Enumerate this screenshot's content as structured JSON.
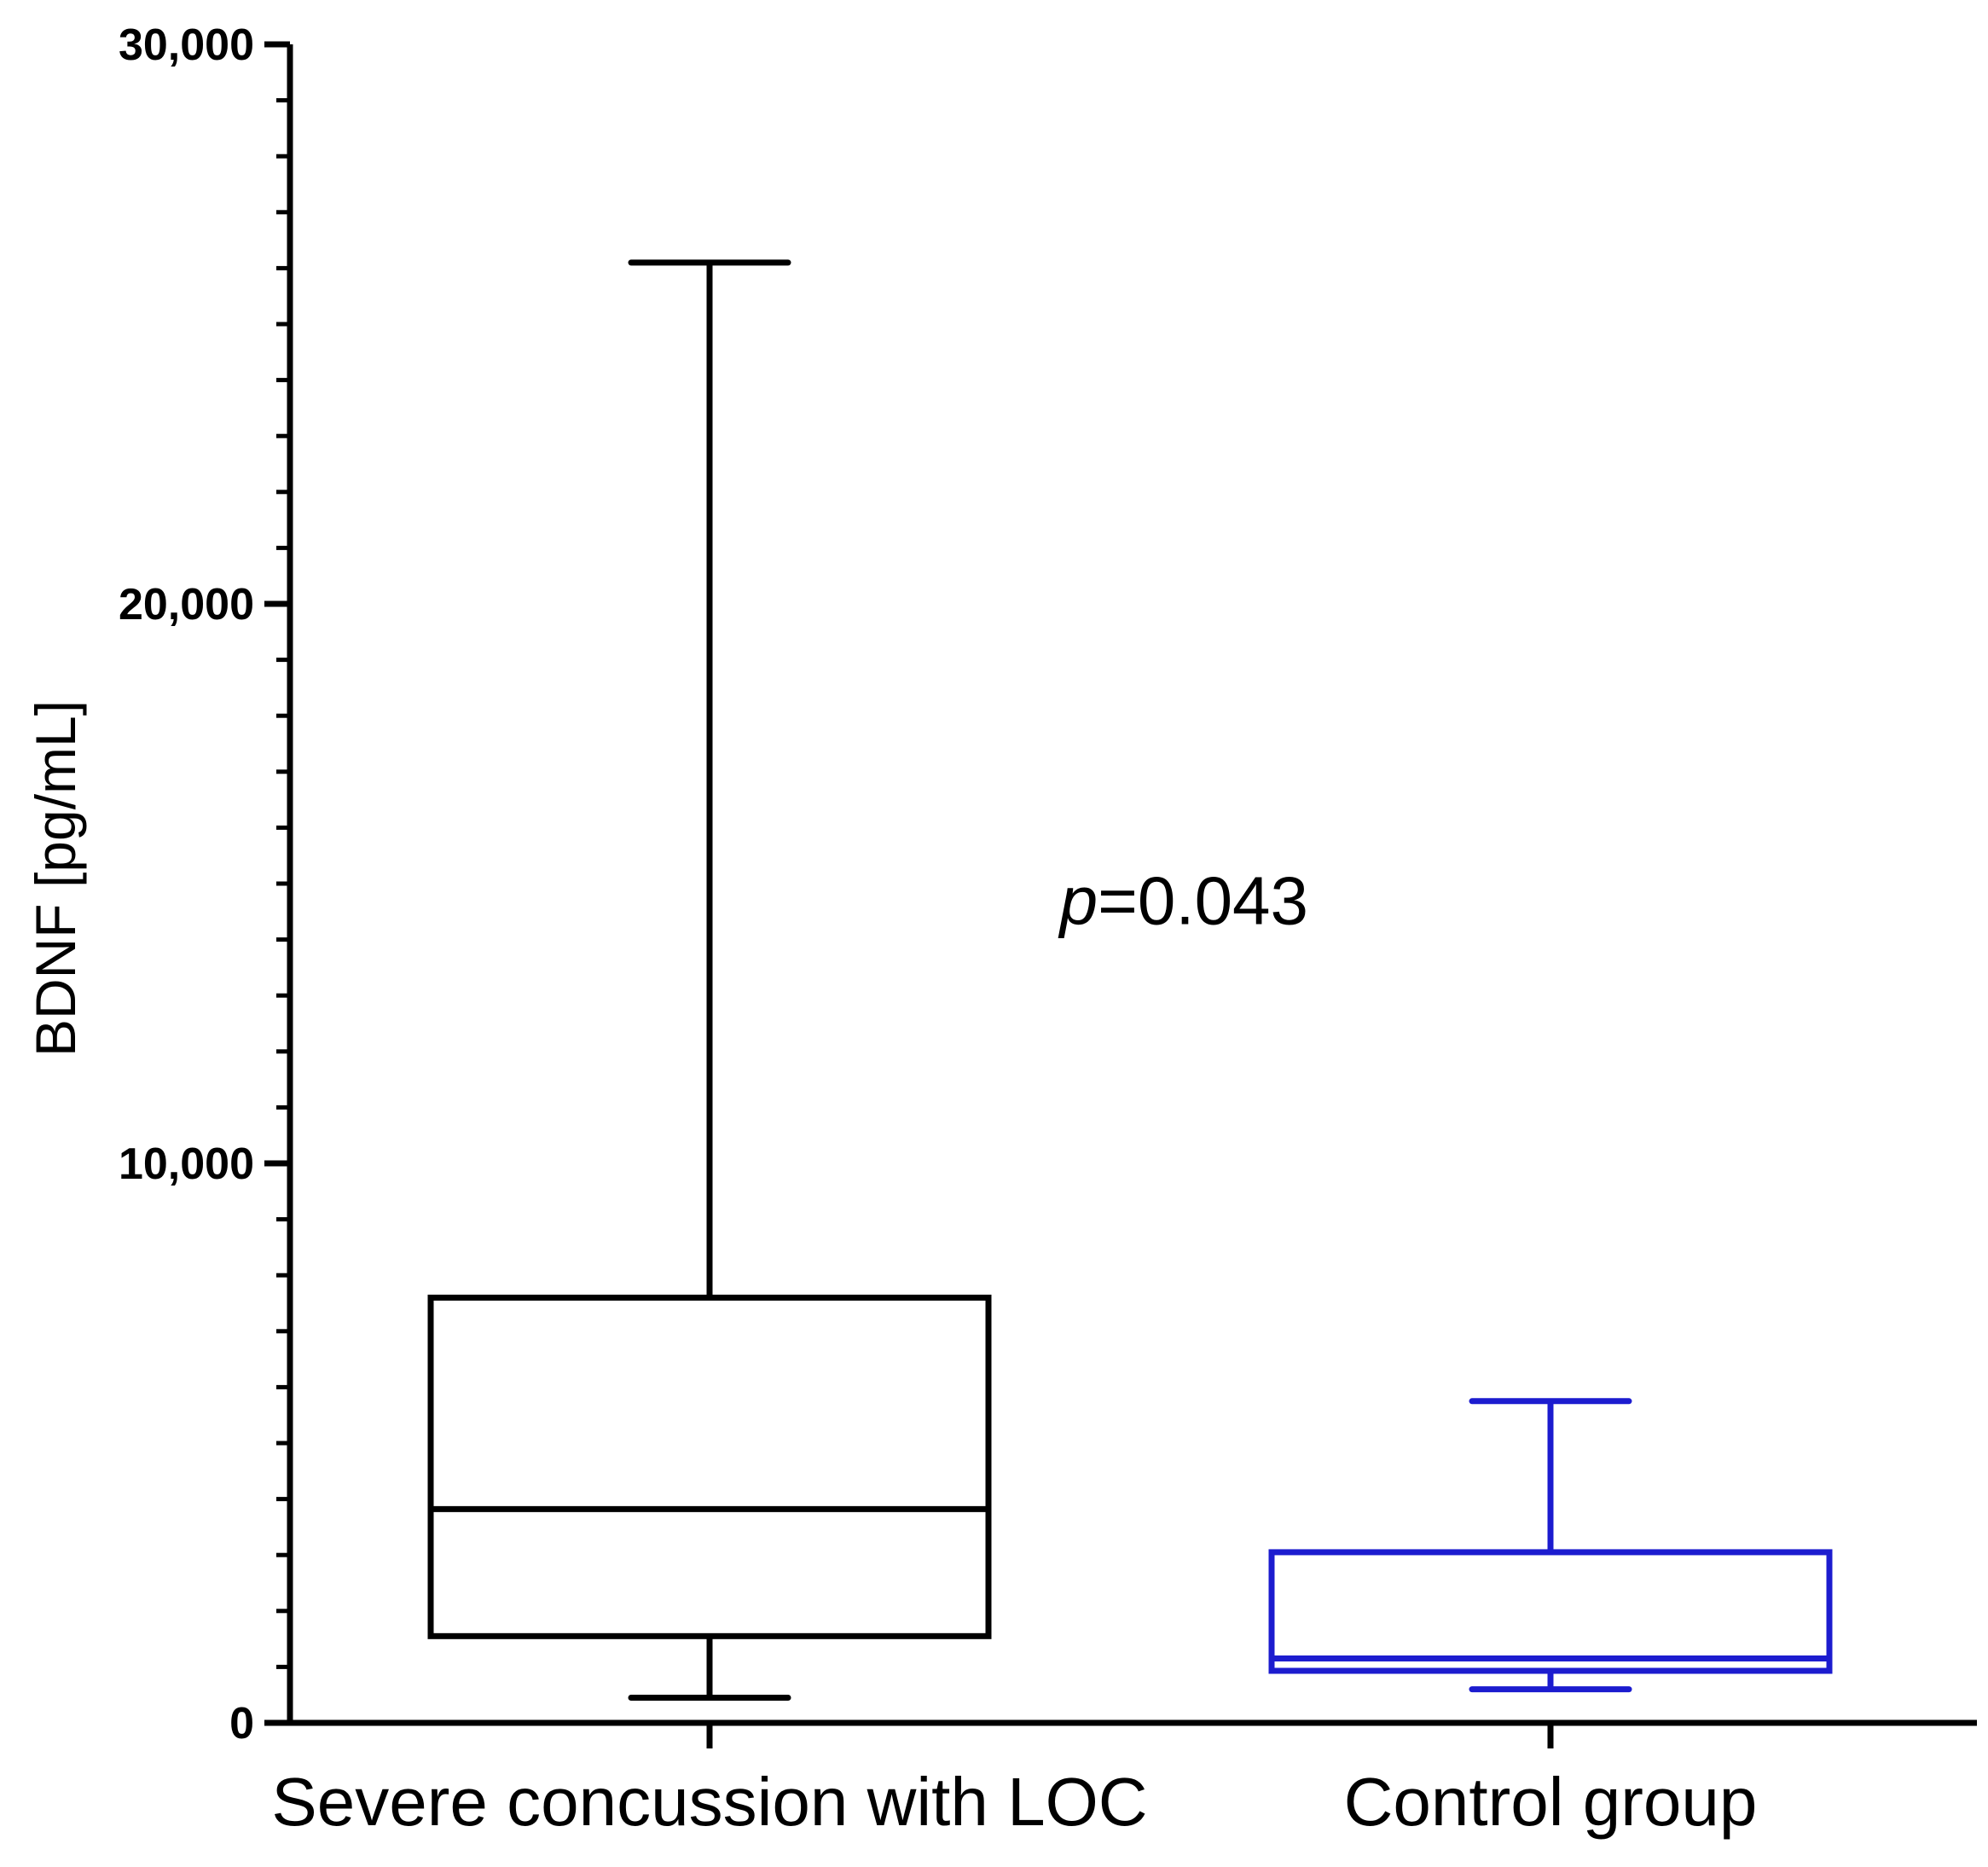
{
  "chart_data": {
    "type": "boxplot",
    "title": "",
    "xlabel": "",
    "ylabel": "BDNF [pg/mL]",
    "ylim": [
      0,
      30000
    ],
    "yticks": [
      0,
      10000,
      20000,
      30000
    ],
    "ytick_labels": [
      "0",
      "10,000",
      "20,000",
      "30,000"
    ],
    "minor_tick_step": 1000,
    "categories": [
      "Severe concussion with LOC",
      "Control group"
    ],
    "boxes": [
      {
        "name": "Severe concussion with LOC",
        "min": 450,
        "q1": 1550,
        "median": 3820,
        "q3": 7600,
        "max": 26100,
        "color": "#000000"
      },
      {
        "name": "Control group",
        "min": 600,
        "q1": 930,
        "median": 1150,
        "q3": 3050,
        "max": 5750,
        "color": "#1c1ccf"
      }
    ],
    "annotation": {
      "prefix": "p",
      "text": "=0.043",
      "x_category_position": 0.53,
      "y_value": 14700
    },
    "grid": false,
    "legend": "none"
  }
}
